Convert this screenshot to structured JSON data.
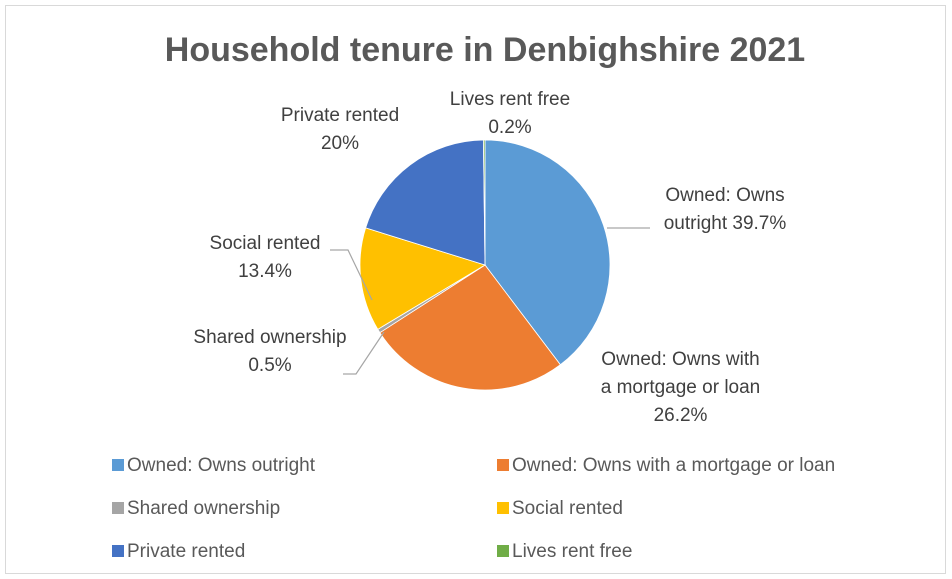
{
  "chart_data": {
    "type": "pie",
    "title": "Household tenure in Denbighshire 2021",
    "categories": [
      "Owned: Owns outright",
      "Owned: Owns with a mortgage or loan",
      "Shared ownership",
      "Social rented",
      "Private rented",
      "Lives rent free"
    ],
    "values": [
      39.7,
      26.2,
      0.5,
      13.4,
      20,
      0.2
    ],
    "value_labels": [
      "39.7%",
      "26.2%",
      "0.5%",
      "13.4%",
      "20%",
      "0.2%"
    ],
    "colors": [
      "#5b9bd5",
      "#ed7d31",
      "#a5a5a5",
      "#ffc000",
      "#4472c4",
      "#70ad47"
    ],
    "legend": "bottom"
  }
}
